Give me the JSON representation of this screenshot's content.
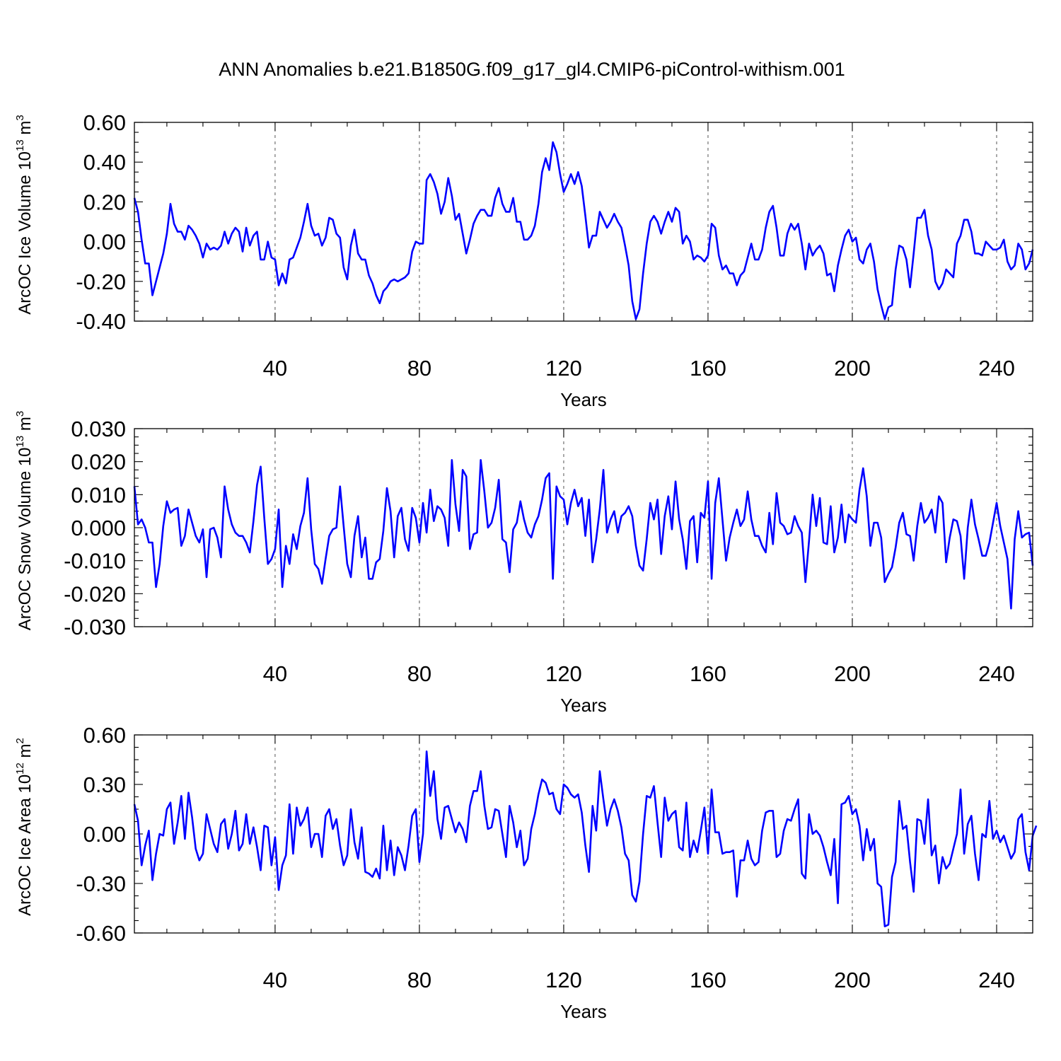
{
  "figure": {
    "title": "ANN Anomalies b.e21.B1850G.f09_g17_gl4.CMIP6-piControl-withism.001",
    "line_color": "#0000ff"
  },
  "chart_data": [
    {
      "type": "line",
      "ylabel_main": "ArcOC Ice Volume 10",
      "ylabel_exp": "13",
      "ylabel_unit": "m",
      "ylabel_unit_exp": "3",
      "xlabel": "Years",
      "xlim": [
        1,
        250
      ],
      "ylim": [
        -0.4,
        0.6
      ],
      "xticks": [
        40,
        80,
        120,
        160,
        200,
        240
      ],
      "xtick_labels": [
        "40",
        "80",
        "120",
        "160",
        "200",
        "240"
      ],
      "yticks": [
        -0.4,
        -0.2,
        0.0,
        0.2,
        0.4,
        0.6
      ],
      "ytick_labels": [
        "-0.40",
        "-0.20",
        "0.00",
        "0.20",
        "0.40",
        "0.60"
      ],
      "grid": "vertical-dashed",
      "series": [
        {
          "name": "ArcOC Ice Volume",
          "x_start": 1,
          "values": [
            0.22,
            0.15,
            0.01,
            -0.11,
            -0.11,
            -0.27,
            -0.2,
            -0.13,
            -0.06,
            0.04,
            0.19,
            0.09,
            0.05,
            0.05,
            0.01,
            0.08,
            0.06,
            0.03,
            -0.01,
            -0.08,
            -0.01,
            -0.04,
            -0.03,
            -0.04,
            -0.02,
            0.05,
            -0.01,
            0.04,
            0.07,
            0.05,
            -0.05,
            0.07,
            -0.02,
            0.03,
            0.05,
            -0.09,
            -0.09,
            0.0,
            -0.08,
            -0.09,
            -0.22,
            -0.16,
            -0.21,
            -0.09,
            -0.08,
            -0.03,
            0.02,
            0.1,
            0.19,
            0.08,
            0.03,
            0.04,
            -0.02,
            0.02,
            0.12,
            0.11,
            0.04,
            0.02,
            -0.13,
            -0.19,
            -0.02,
            0.06,
            -0.06,
            -0.09,
            -0.09,
            -0.17,
            -0.21,
            -0.27,
            -0.31,
            -0.25,
            -0.23,
            -0.2,
            -0.19,
            -0.2,
            -0.19,
            -0.18,
            -0.16,
            -0.05,
            0.0,
            -0.01,
            -0.01,
            0.31,
            0.34,
            0.3,
            0.24,
            0.14,
            0.2,
            0.32,
            0.23,
            0.11,
            0.14,
            0.04,
            -0.06,
            0.01,
            0.09,
            0.13,
            0.16,
            0.16,
            0.13,
            0.13,
            0.22,
            0.27,
            0.19,
            0.15,
            0.15,
            0.22,
            0.1,
            0.1,
            0.01,
            0.01,
            0.03,
            0.08,
            0.19,
            0.35,
            0.42,
            0.36,
            0.5,
            0.45,
            0.34,
            0.25,
            0.29,
            0.34,
            0.29,
            0.35,
            0.28,
            0.13,
            -0.03,
            0.03,
            0.03,
            0.15,
            0.11,
            0.07,
            0.1,
            0.14,
            0.1,
            0.07,
            -0.02,
            -0.12,
            -0.3,
            -0.39,
            -0.34,
            -0.16,
            -0.01,
            0.1,
            0.13,
            0.1,
            0.04,
            0.1,
            0.15,
            0.1,
            0.17,
            0.15,
            -0.01,
            0.03,
            0.0,
            -0.09,
            -0.07,
            -0.08,
            -0.1,
            -0.07,
            0.09,
            0.07,
            -0.07,
            -0.14,
            -0.12,
            -0.16,
            -0.16,
            -0.22,
            -0.17,
            -0.15,
            -0.08,
            -0.01,
            -0.09,
            -0.09,
            -0.04,
            0.07,
            0.15,
            0.18,
            0.07,
            -0.07,
            -0.07,
            0.04,
            0.09,
            0.06,
            0.09,
            -0.01,
            -0.14,
            -0.01,
            -0.07,
            -0.04,
            -0.02,
            -0.06,
            -0.17,
            -0.16,
            -0.25,
            -0.12,
            -0.04,
            0.03,
            0.06,
            0.0,
            0.02,
            -0.09,
            -0.11,
            -0.04,
            -0.01,
            -0.1,
            -0.24,
            -0.32,
            -0.39,
            -0.33,
            -0.32,
            -0.14,
            -0.02,
            -0.03,
            -0.09,
            -0.23,
            -0.06,
            0.12,
            0.12,
            0.16,
            0.03,
            -0.04,
            -0.2,
            -0.24,
            -0.21,
            -0.14,
            -0.16,
            -0.18,
            -0.01,
            0.03,
            0.11,
            0.11,
            0.05,
            -0.06,
            -0.06,
            -0.07,
            0.0,
            -0.02,
            -0.04,
            -0.04,
            -0.03,
            0.01,
            -0.1,
            -0.14,
            -0.12,
            -0.01,
            -0.04,
            -0.14,
            -0.11,
            -0.04
          ]
        }
      ]
    },
    {
      "type": "line",
      "ylabel_main": "ArcOC Snow Volume 10",
      "ylabel_exp": "13",
      "ylabel_unit": "m",
      "ylabel_unit_exp": "3",
      "xlabel": "Years",
      "xlim": [
        1,
        250
      ],
      "ylim": [
        -0.03,
        0.03
      ],
      "xticks": [
        40,
        80,
        120,
        160,
        200,
        240
      ],
      "xtick_labels": [
        "40",
        "80",
        "120",
        "160",
        "200",
        "240"
      ],
      "yticks": [
        -0.03,
        -0.02,
        -0.01,
        0.0,
        0.01,
        0.02,
        0.03
      ],
      "ytick_labels": [
        "-0.030",
        "-0.020",
        "-0.010",
        "0.000",
        "0.010",
        "0.020",
        "0.030"
      ],
      "grid": "vertical-dashed",
      "series": [
        {
          "name": "ArcOC Snow Volume",
          "x_start": 1,
          "values": [
            0.0125,
            0.001,
            0.0025,
            0.0,
            -0.0045,
            -0.0045,
            -0.018,
            -0.011,
            0.0005,
            0.008,
            0.0045,
            0.0055,
            0.006,
            -0.0055,
            -0.0025,
            0.0055,
            0.0015,
            -0.0025,
            -0.0045,
            -0.0005,
            -0.015,
            -0.0005,
            0.0,
            -0.003,
            -0.009,
            0.0125,
            0.0055,
            0.001,
            -0.0015,
            -0.0025,
            -0.0025,
            -0.0045,
            -0.0075,
            0.002,
            0.013,
            0.0185,
            0.003,
            -0.011,
            -0.0095,
            -0.0065,
            0.0055,
            -0.018,
            -0.0055,
            -0.011,
            -0.002,
            -0.0065,
            0.0005,
            0.0045,
            0.015,
            -0.0005,
            -0.011,
            -0.0125,
            -0.017,
            -0.0095,
            -0.0025,
            -0.0005,
            0.0,
            0.0125,
            0.0005,
            -0.011,
            -0.015,
            -0.0025,
            0.0035,
            -0.009,
            -0.003,
            -0.0155,
            -0.0155,
            -0.0105,
            -0.0095,
            -0.001,
            0.012,
            0.005,
            -0.009,
            0.0035,
            0.006,
            -0.0035,
            -0.007,
            0.006,
            0.003,
            -0.0045,
            0.0075,
            -0.0015,
            0.0115,
            0.002,
            0.0065,
            0.0055,
            0.003,
            -0.0055,
            0.0205,
            0.007,
            -0.001,
            0.0175,
            0.0155,
            -0.0065,
            -0.002,
            -0.0015,
            0.0205,
            0.011,
            0.0,
            0.0015,
            0.006,
            0.0145,
            -0.0035,
            -0.0045,
            -0.0135,
            -0.0005,
            0.0015,
            0.008,
            0.0025,
            -0.0015,
            -0.003,
            0.001,
            0.0035,
            0.0085,
            0.015,
            0.0165,
            -0.0155,
            0.0125,
            0.0095,
            0.0085,
            0.001,
            0.0075,
            0.0115,
            0.0065,
            0.009,
            -0.0025,
            0.0085,
            -0.0105,
            -0.0035,
            0.0055,
            0.0175,
            -0.0015,
            0.0025,
            0.005,
            -0.0015,
            0.0035,
            0.0045,
            0.0065,
            0.0035,
            -0.0055,
            -0.0115,
            -0.013,
            -0.0035,
            0.0075,
            0.0025,
            0.0085,
            -0.008,
            0.0035,
            0.0095,
            -0.0005,
            0.014,
            0.0025,
            -0.0035,
            -0.0125,
            0.002,
            0.0035,
            -0.0105,
            0.0045,
            0.003,
            0.014,
            -0.0155,
            0.0075,
            0.015,
            0.0025,
            -0.01,
            -0.003,
            0.0015,
            0.0055,
            0.0005,
            0.0025,
            0.011,
            0.0025,
            -0.0025,
            -0.0025,
            -0.0055,
            -0.0075,
            0.0045,
            -0.005,
            0.0105,
            0.0015,
            0.0005,
            -0.002,
            -0.0015,
            0.0035,
            0.0005,
            -0.0015,
            -0.0165,
            -0.004,
            0.01,
            0.0005,
            0.009,
            -0.0045,
            -0.005,
            0.0065,
            -0.0075,
            -0.003,
            0.007,
            -0.0045,
            0.004,
            0.0025,
            0.0015,
            0.0115,
            0.018,
            0.0095,
            -0.0055,
            0.0015,
            0.0015,
            -0.003,
            -0.0165,
            -0.014,
            -0.012,
            -0.006,
            0.0015,
            0.0045,
            -0.002,
            -0.0025,
            -0.01,
            0.0005,
            0.0075,
            0.0015,
            0.003,
            0.0055,
            -0.0015,
            0.0095,
            0.0075,
            -0.0105,
            -0.003,
            0.0025,
            0.002,
            -0.0025,
            -0.0155,
            0.0,
            0.0085,
            0.001,
            -0.0035,
            -0.0085,
            -0.0085,
            -0.0045,
            0.0015,
            0.0075,
            0.0005,
            -0.0045,
            -0.0095,
            -0.0245,
            -0.0035,
            0.005,
            -0.003,
            -0.002,
            -0.0015,
            -0.0115
          ]
        }
      ]
    },
    {
      "type": "line",
      "ylabel_main": "ArcOC Ice Area 10",
      "ylabel_exp": "12",
      "ylabel_unit": "m",
      "ylabel_unit_exp": "2",
      "xlabel": "Years",
      "xlim": [
        1,
        250
      ],
      "ylim": [
        -0.6,
        0.6
      ],
      "xticks": [
        40,
        80,
        120,
        160,
        200,
        240
      ],
      "xtick_labels": [
        "40",
        "80",
        "120",
        "160",
        "200",
        "240"
      ],
      "yticks": [
        -0.6,
        -0.3,
        0.0,
        0.3,
        0.6
      ],
      "ytick_labels": [
        "-0.60",
        "-0.30",
        "0.00",
        "0.30",
        "0.60"
      ],
      "grid": "vertical-dashed",
      "series": [
        {
          "name": "ArcOC Ice Area",
          "x_start": 1,
          "values": [
            0.18,
            0.08,
            -0.19,
            -0.07,
            0.02,
            -0.28,
            -0.12,
            0.0,
            -0.01,
            0.15,
            0.19,
            -0.06,
            0.07,
            0.23,
            -0.03,
            0.25,
            0.1,
            -0.09,
            -0.16,
            -0.12,
            0.12,
            0.03,
            -0.06,
            -0.11,
            0.06,
            0.09,
            -0.09,
            0.0,
            0.14,
            -0.1,
            -0.06,
            0.12,
            -0.06,
            0.04,
            -0.08,
            -0.22,
            0.05,
            0.04,
            -0.19,
            -0.02,
            -0.34,
            -0.19,
            -0.13,
            0.18,
            -0.12,
            0.16,
            0.05,
            0.09,
            0.16,
            -0.08,
            0.0,
            0.0,
            -0.14,
            0.11,
            0.15,
            0.03,
            0.09,
            -0.07,
            -0.19,
            -0.13,
            0.15,
            -0.05,
            -0.15,
            0.04,
            -0.23,
            -0.24,
            -0.26,
            -0.21,
            -0.27,
            0.05,
            -0.22,
            -0.04,
            -0.25,
            -0.08,
            -0.13,
            -0.22,
            -0.07,
            0.11,
            0.15,
            -0.17,
            0.0,
            0.5,
            0.23,
            0.38,
            0.09,
            -0.03,
            0.16,
            0.17,
            0.09,
            0.01,
            0.07,
            0.03,
            -0.05,
            0.17,
            0.26,
            0.26,
            0.38,
            0.17,
            0.03,
            0.04,
            0.15,
            0.14,
            0.0,
            -0.14,
            0.17,
            0.07,
            -0.08,
            0.02,
            -0.19,
            -0.15,
            0.03,
            0.12,
            0.24,
            0.33,
            0.31,
            0.24,
            0.25,
            0.15,
            0.12,
            0.3,
            0.28,
            0.24,
            0.22,
            0.24,
            0.13,
            -0.07,
            -0.23,
            0.17,
            0.02,
            0.38,
            0.21,
            0.05,
            0.15,
            0.21,
            0.14,
            0.04,
            -0.12,
            -0.16,
            -0.37,
            -0.41,
            -0.29,
            0.0,
            0.23,
            0.22,
            0.29,
            0.07,
            -0.14,
            0.22,
            0.08,
            0.12,
            0.14,
            -0.08,
            -0.1,
            0.19,
            -0.14,
            -0.04,
            -0.11,
            0.02,
            0.16,
            -0.12,
            0.27,
            0.01,
            0.01,
            -0.12,
            -0.11,
            -0.11,
            -0.1,
            -0.38,
            -0.16,
            -0.16,
            -0.04,
            -0.15,
            -0.19,
            -0.17,
            0.02,
            0.13,
            0.14,
            0.14,
            -0.14,
            -0.12,
            0.02,
            0.09,
            0.08,
            0.15,
            0.21,
            -0.24,
            -0.27,
            0.12,
            0.0,
            0.02,
            -0.01,
            -0.08,
            -0.17,
            -0.25,
            -0.03,
            -0.42,
            0.18,
            0.19,
            0.23,
            0.12,
            0.15,
            0.05,
            -0.16,
            0.03,
            -0.1,
            -0.03,
            -0.3,
            -0.32,
            -0.56,
            -0.55,
            -0.26,
            -0.17,
            0.2,
            0.03,
            0.05,
            -0.17,
            -0.35,
            0.09,
            0.08,
            -0.06,
            0.21,
            -0.13,
            -0.07,
            -0.3,
            -0.14,
            -0.21,
            -0.18,
            -0.09,
            0.0,
            0.27,
            -0.12,
            0.06,
            0.11,
            -0.12,
            -0.28,
            0.0,
            -0.02,
            0.2,
            -0.03,
            0.02,
            -0.05,
            -0.01,
            -0.08,
            -0.15,
            -0.11,
            0.09,
            0.12,
            -0.11,
            -0.22,
            -0.01,
            0.05
          ]
        }
      ]
    }
  ]
}
